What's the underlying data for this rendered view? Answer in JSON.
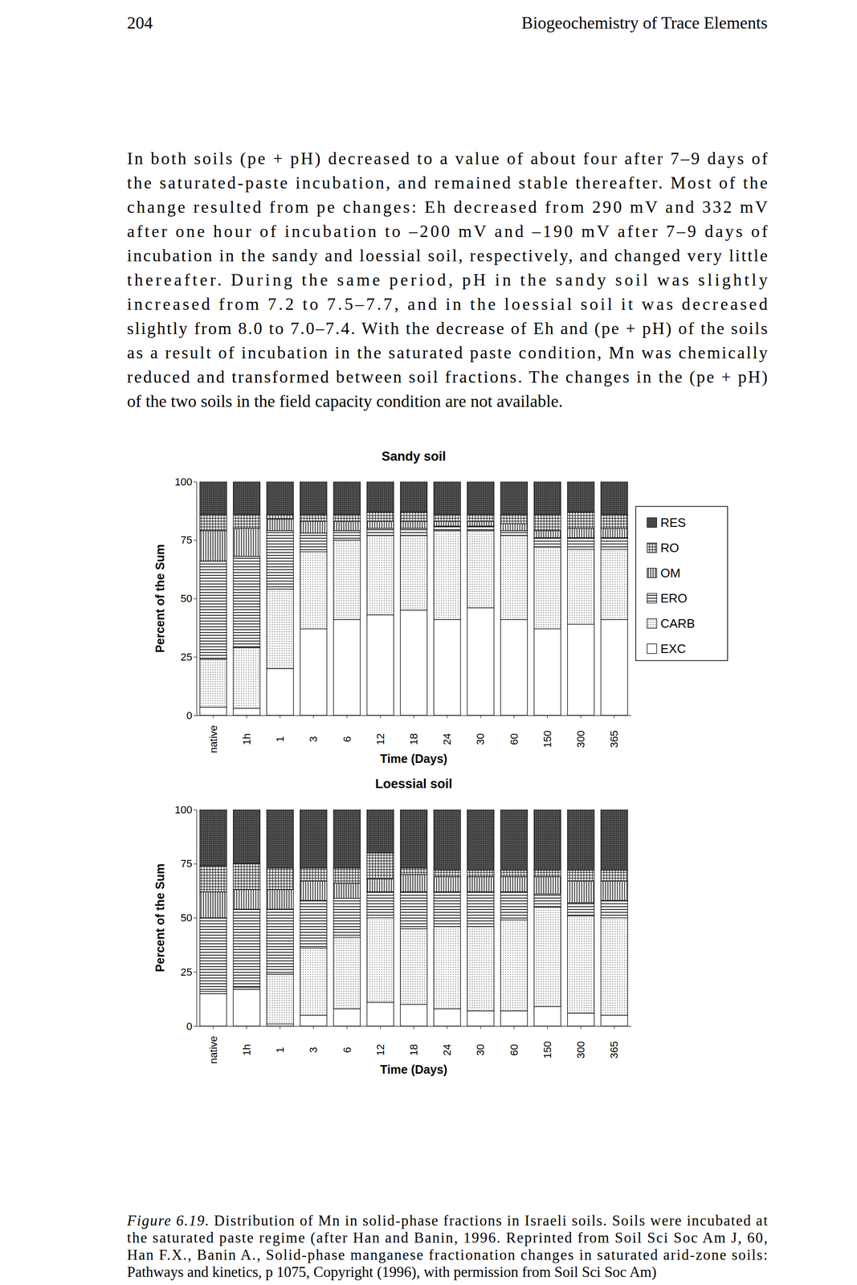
{
  "header": {
    "page": "204",
    "title": "Biogeochemistry of Trace Elements"
  },
  "paragraph": [
    "In both soils (pe + pH) decreased to a value of about four after 7–9 days of",
    "the saturated-paste incubation, and remained stable thereafter. Most of the",
    "change resulted from pe changes: Eh decreased from 290 mV and 332 mV",
    "after one hour of incubation to –200 mV and –190 mV after 7–9 days of",
    "incubation in the sandy and loessial soil, respectively, and changed very little",
    "thereafter. During the same period, pH in the sandy soil was slightly",
    "increased from 7.2 to 7.5–7.7, and in the loessial soil it was decreased",
    "slightly from 8.0 to 7.0–7.4. With the decrease of Eh and (pe + pH) of the soils",
    "as a result of incubation in the saturated paste condition, Mn was chemically",
    "reduced and transformed between soil fractions. The changes in the (pe + pH)",
    "of the two soils in the field capacity condition are not available."
  ],
  "chart_data": [
    {
      "type": "bar",
      "stacked": true,
      "title": "Sandy soil",
      "x_label": "Time (Days)",
      "y_label": "Percent of the Sum",
      "categories": [
        "native",
        "1h",
        "1",
        "3",
        "6",
        "12",
        "18",
        "24",
        "30",
        "60",
        "150",
        "300",
        "365"
      ],
      "ylim": [
        0,
        100
      ],
      "yticks": [
        0,
        25,
        50,
        75,
        100
      ],
      "grid": false,
      "legend": "right",
      "series": [
        {
          "name": "EXC",
          "color": "#ffffff",
          "values": [
            3.5,
            3,
            20,
            37,
            41,
            43,
            45,
            41,
            46,
            41,
            37,
            39,
            41
          ]
        },
        {
          "name": "CARB",
          "color": "#555555",
          "values": [
            20.5,
            26,
            34,
            33,
            34,
            34,
            32,
            38,
            33,
            36,
            35,
            32,
            30
          ]
        },
        {
          "name": "ERO",
          "color": "#333333",
          "values": [
            42,
            39,
            25,
            8,
            4,
            3,
            3,
            2,
            2,
            2,
            4,
            5,
            5
          ]
        },
        {
          "name": "OM",
          "color": "#333333",
          "values": [
            13,
            12,
            5,
            5,
            4,
            3,
            3,
            2,
            2,
            3,
            3,
            4,
            4
          ]
        },
        {
          "name": "RO",
          "color": "#333333",
          "values": [
            7,
            6,
            2,
            3,
            3,
            4,
            4,
            3,
            3,
            4,
            7,
            7,
            6
          ]
        },
        {
          "name": "RES",
          "color": "#3a3a3a",
          "values": [
            14,
            14,
            14,
            14,
            14,
            13,
            13,
            14,
            14,
            14,
            14,
            13,
            14
          ]
        }
      ]
    },
    {
      "type": "bar",
      "stacked": true,
      "title": "Loessial soil",
      "x_label": "Time (Days)",
      "y_label": "Percent of the Sum",
      "categories": [
        "native",
        "1h",
        "1",
        "3",
        "6",
        "12",
        "18",
        "24",
        "30",
        "60",
        "150",
        "300",
        "365"
      ],
      "ylim": [
        0,
        100
      ],
      "yticks": [
        0,
        25,
        50,
        75,
        100
      ],
      "grid": false,
      "series": [
        {
          "color": "#ffffff",
          "values": [
            15,
            17,
            1,
            5,
            8,
            11,
            10,
            8,
            7,
            7,
            9,
            6,
            5
          ]
        },
        {
          "color": "#555555",
          "values": [
            1,
            1,
            23,
            31,
            33,
            39,
            35,
            38,
            39,
            42,
            46,
            45,
            45
          ]
        },
        {
          "color": "#333333",
          "values": [
            34,
            36,
            30,
            22,
            18,
            12,
            17,
            16,
            16,
            13,
            6,
            6,
            8
          ]
        },
        {
          "color": "#333333",
          "values": [
            12,
            9,
            9,
            9,
            7,
            6,
            8,
            7,
            7,
            7,
            8,
            10,
            9
          ]
        },
        {
          "color": "#333333",
          "values": [
            12,
            12,
            10,
            6,
            7,
            12,
            3,
            3,
            3,
            3,
            3,
            5,
            5
          ]
        },
        {
          "color": "#3a3a3a",
          "values": [
            26,
            25,
            27,
            27,
            27,
            20,
            27,
            28,
            28,
            28,
            28,
            28,
            28
          ]
        }
      ]
    }
  ],
  "caption": {
    "label": "Figure 6.19.",
    "lines": [
      "Distribution of Mn in solid-phase fractions in Israeli soils. Soils were incubated at",
      "the saturated paste regime (after Han and Banin, 1996. Reprinted from Soil Sci Soc Am J, 60,",
      "Han F.X., Banin A., Solid-phase manganese fractionation changes in saturated arid-zone soils:",
      "Pathways and kinetics, p 1075, Copyright (1996), with permission from Soil Sci Soc Am)"
    ]
  }
}
